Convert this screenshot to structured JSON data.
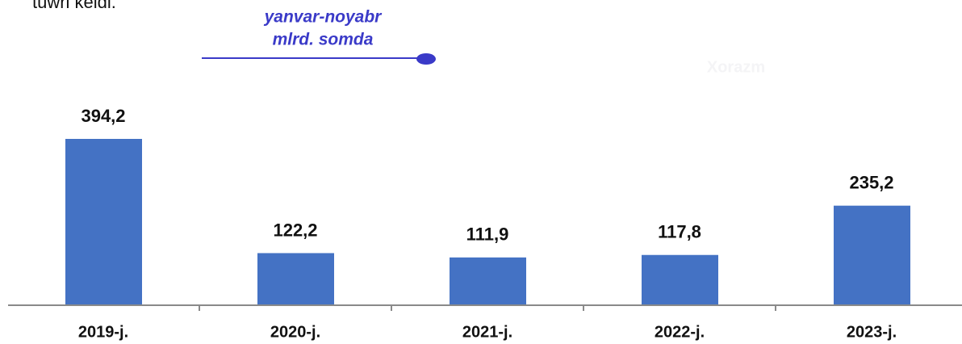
{
  "heading": "tuwri keldi.",
  "chart_data": {
    "type": "bar",
    "subtitle": [
      "yanvar-noyabr",
      "mlrd. somda"
    ],
    "watermark": "Xorazm",
    "categories": [
      "2019-j.",
      "2020-j.",
      "2021-j.",
      "2022-j.",
      "2023-j."
    ],
    "values": [
      394.2,
      122.2,
      111.9,
      117.8,
      235.2
    ],
    "value_labels": [
      "394,2",
      "122,2",
      "111,9",
      "117,8",
      "235,2"
    ],
    "color": "#4472c4"
  }
}
